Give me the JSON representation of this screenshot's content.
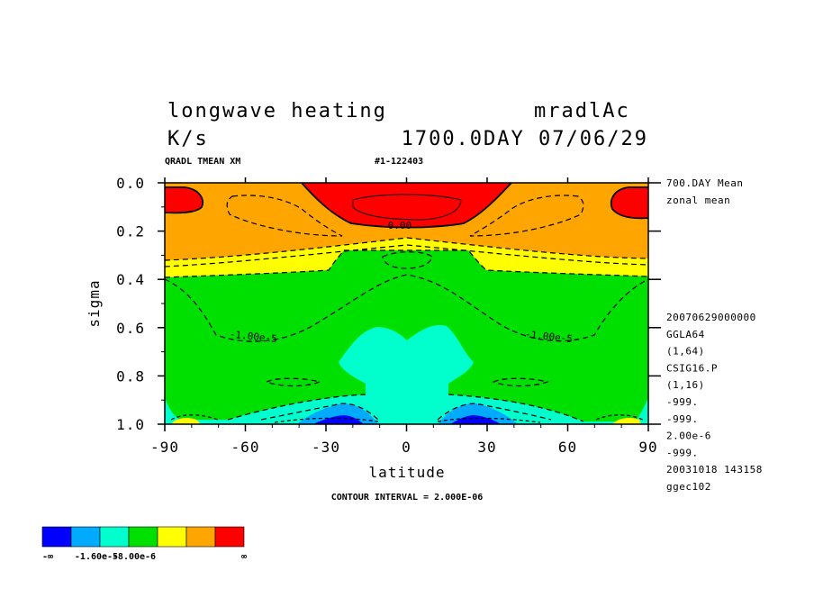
{
  "header": {
    "title_left": "longwave heating",
    "title_right": "mradlAc",
    "units": "K/s",
    "time": "1700.0DAY 07/06/29",
    "subtitle_left": "QRADL TMEAN XM",
    "subtitle_center": "#1-122403"
  },
  "right_info": {
    "top": [
      "700.DAY Mean",
      "zonal mean"
    ],
    "bottom": [
      "20070629000000",
      "GGLA64",
      "(1,64)",
      "CSIG16.P",
      "(1,16)",
      "-999.",
      "-999.",
      "2.00e-6",
      "-999.",
      "20031018 143158",
      "ggec102"
    ]
  },
  "contour_interval_label": "CONTOUR INTERVAL = 2.000E-06",
  "colorbar": {
    "colors": [
      "#0000ff",
      "#00aaff",
      "#00ffcc",
      "#00e000",
      "#ffff00",
      "#ffa500",
      "#ff0000"
    ],
    "labels": [
      "-∞",
      "-1.60e-5",
      "-8.00e-6",
      "∞"
    ]
  },
  "chart_data": {
    "type": "contour",
    "xlabel": "latitude",
    "ylabel": "sigma",
    "xlim": [
      -90,
      90
    ],
    "ylim": [
      1.0,
      0.0
    ],
    "x_ticks": [
      "-90",
      "-60",
      "-30",
      "0",
      "30",
      "60",
      "90"
    ],
    "y_ticks": [
      "0.0",
      "0.2",
      "0.4",
      "0.6",
      "0.8",
      "1.0"
    ],
    "contour_labels": [
      {
        "text": "0.00",
        "lat": -7,
        "sigma": 0.19
      },
      {
        "text": "-1.00e-5",
        "lat": -66,
        "sigma": 0.64
      },
      {
        "text": "-1.00e-5",
        "lat": 44,
        "sigma": 0.64
      }
    ],
    "regions": [
      {
        "name": "orange upper band",
        "color": "orange",
        "lat": [
          -90,
          90
        ],
        "sigma": [
          0.0,
          0.3
        ]
      },
      {
        "name": "yellow band",
        "color": "yellow",
        "lat": [
          -90,
          90
        ],
        "sigma": [
          0.25,
          0.38
        ]
      },
      {
        "name": "green interior",
        "color": "green",
        "lat": [
          -90,
          90
        ],
        "sigma": [
          0.3,
          1.0
        ]
      },
      {
        "name": "red top center",
        "color": "red",
        "lat": [
          -40,
          40
        ],
        "sigma": [
          0.0,
          0.18
        ]
      },
      {
        "name": "red top-left",
        "color": "red",
        "lat": [
          -90,
          -80
        ],
        "sigma": [
          0.02,
          0.13
        ]
      },
      {
        "name": "red top-right",
        "color": "red",
        "lat": [
          80,
          90
        ],
        "sigma": [
          0.02,
          0.13
        ]
      },
      {
        "name": "cyan middle",
        "color": "cyan",
        "lat": [
          -30,
          30
        ],
        "sigma": [
          0.59,
          0.85
        ]
      },
      {
        "name": "cyan bottom",
        "color": "cyan",
        "lat": [
          -65,
          65
        ],
        "sigma": [
          0.85,
          1.0
        ]
      },
      {
        "name": "blue bottom-left",
        "color": "blue",
        "lat": [
          -40,
          -14
        ],
        "sigma": [
          0.92,
          1.0
        ]
      },
      {
        "name": "blue bottom-right",
        "color": "blue",
        "lat": [
          14,
          40
        ],
        "sigma": [
          0.92,
          1.0
        ]
      }
    ]
  }
}
